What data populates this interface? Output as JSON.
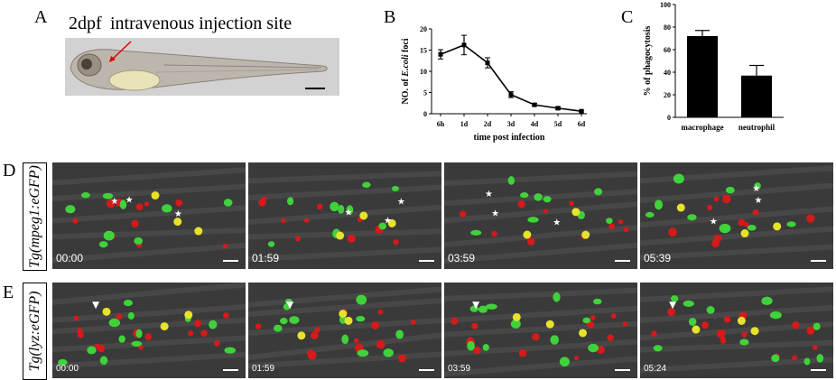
{
  "panel_a": {
    "letter": "A",
    "stage": "2dpf",
    "caption": "intravenous injection site"
  },
  "panel_b": {
    "letter": "B"
  },
  "panel_c": {
    "letter": "C"
  },
  "panel_d": {
    "letter": "D",
    "row_label": "Tg(mpeg1:eGFP)",
    "timestamps": [
      "00:00",
      "01:59",
      "03:59",
      "05:39"
    ]
  },
  "panel_e": {
    "letter": "E",
    "row_label": "Tg(lyz:eGFP)",
    "timestamps": [
      "00:00",
      "01:59",
      "03:59",
      "05:24"
    ]
  },
  "chart_data": [
    {
      "type": "line",
      "categories": [
        "6h",
        "1d",
        "2d",
        "3d",
        "4d",
        "5d",
        "6d"
      ],
      "values": [
        14,
        16.2,
        12,
        4.5,
        2.1,
        1.3,
        0.6
      ],
      "errors": [
        1.1,
        2.3,
        1.2,
        0.7,
        0.3,
        0.3,
        0.2
      ],
      "title": "",
      "xlabel": "time post infection",
      "ylabel_prefix": "NO. of ",
      "ylabel_italic": "E.coli",
      "ylabel_suffix": " foci",
      "ylim": [
        0,
        20
      ],
      "yticks": [
        0,
        5,
        10,
        15,
        20
      ],
      "grid": false
    },
    {
      "type": "bar",
      "categories": [
        "macrophage",
        "neutrophil"
      ],
      "values": [
        72,
        37
      ],
      "errors": [
        5,
        9
      ],
      "title": "",
      "xlabel": "",
      "ylabel": "% of phagocytosis",
      "ylim": [
        0,
        100
      ],
      "yticks": [
        0,
        20,
        40,
        60,
        80,
        100
      ],
      "grid": false,
      "colors": [
        "#000000"
      ]
    }
  ]
}
